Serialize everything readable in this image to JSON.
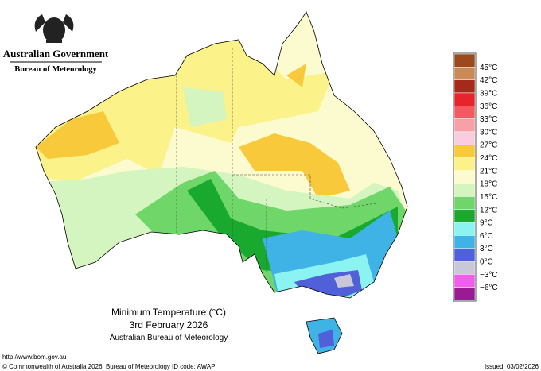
{
  "header": {
    "government": "Australian Government",
    "agency": "Bureau of Meteorology"
  },
  "title": {
    "line1": "Minimum Temperature (°C)",
    "line2": "3rd February 2026",
    "line3": "Australian Bureau of Meteorology"
  },
  "legend": {
    "labels": [
      "45°C",
      "42°C",
      "39°C",
      "36°C",
      "33°C",
      "30°C",
      "27°C",
      "24°C",
      "21°C",
      "18°C",
      "15°C",
      "12°C",
      "9°C",
      "6°C",
      "3°C",
      "0°C",
      "−3°C",
      "−6°C"
    ],
    "colors": [
      "#9a4a1c",
      "#c98a56",
      "#a52a1a",
      "#e5252b",
      "#f25b62",
      "#f7a0a8",
      "#f9cde0",
      "#f7c93b",
      "#fbf28a",
      "#fbfbcf",
      "#d4f5c0",
      "#6fd66a",
      "#1aa92f",
      "#8cf3f3",
      "#3fb2e6",
      "#5060d8",
      "#c8c8d8",
      "#ee5ee8",
      "#9a1a96"
    ]
  },
  "footer": {
    "url": "http://www.bom.gov.au",
    "copyright": "© Commonwealth of Australia 2026, Bureau of Meteorology",
    "id_code": "ID code: AWAP",
    "issued": "Issued: 03/02/2026"
  }
}
